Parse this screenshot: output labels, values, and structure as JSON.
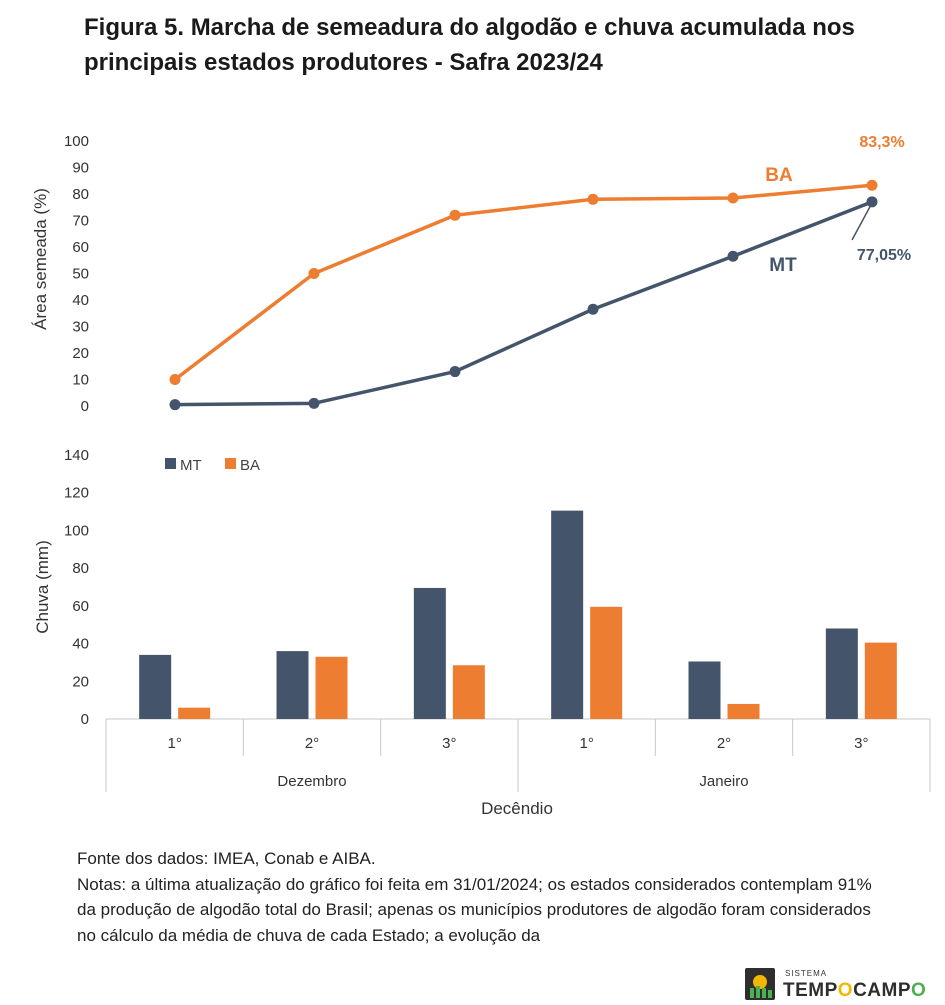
{
  "title": "Figura 5. Marcha de semeadura do algodão e chuva acumulada nos principais estados produtores - Safra 2023/24",
  "chart_data": [
    {
      "type": "line",
      "ylabel": "Área semeada (%)",
      "ylim": [
        0,
        100
      ],
      "yticks": [
        "0",
        "10",
        "20",
        "30",
        "40",
        "50",
        "60",
        "70",
        "80",
        "90",
        "100"
      ],
      "x": [
        "Dezembro 1°",
        "Dezembro 2°",
        "Dezembro 3°",
        "Janeiro 1°",
        "Janeiro 2°",
        "Janeiro 3°"
      ],
      "series": [
        {
          "name": "BA",
          "color": "#ED7D31",
          "values": [
            10,
            50,
            72,
            78,
            78.5,
            83.3
          ],
          "end_label": "83,3%"
        },
        {
          "name": "MT",
          "color": "#44546A",
          "values": [
            0.5,
            1,
            13,
            36.5,
            56.5,
            77.05
          ],
          "end_label": "77,05%"
        }
      ],
      "grid": false,
      "legend": "inline labels near line ends"
    },
    {
      "type": "bar",
      "ylabel": "Chuva (mm)",
      "xlabel": "Decêndio",
      "ylim": [
        0,
        140
      ],
      "yticks": [
        "0",
        "20",
        "40",
        "60",
        "80",
        "100",
        "120",
        "140"
      ],
      "categories": [
        "1°",
        "2°",
        "3°",
        "1°",
        "2°",
        "3°"
      ],
      "groups": [
        {
          "label": "Dezembro",
          "span": 3
        },
        {
          "label": "Janeiro",
          "span": 3
        }
      ],
      "series": [
        {
          "name": "MT",
          "color": "#44546A",
          "values": [
            34,
            36,
            69.5,
            110.5,
            30.5,
            48
          ]
        },
        {
          "name": "BA",
          "color": "#ED7D31",
          "values": [
            6,
            33,
            28.5,
            59.5,
            8,
            40.5
          ]
        }
      ],
      "grid": false,
      "legend": "top-left"
    }
  ],
  "notes": {
    "source": "Fonte dos dados: IMEA, Conab e AIBA.",
    "body": "Notas: a última atualização do gráfico foi feita em 31/01/2024; os estados considerados contemplam 91% da produção de algodão total do Brasil; apenas os municípios produtores de algodão foram considerados no cálculo da média de chuva de cada Estado; a evolução da"
  },
  "logo": {
    "small_text": "SISTEMA",
    "name_part1": "TEMP",
    "name_part2": "CAMP"
  }
}
